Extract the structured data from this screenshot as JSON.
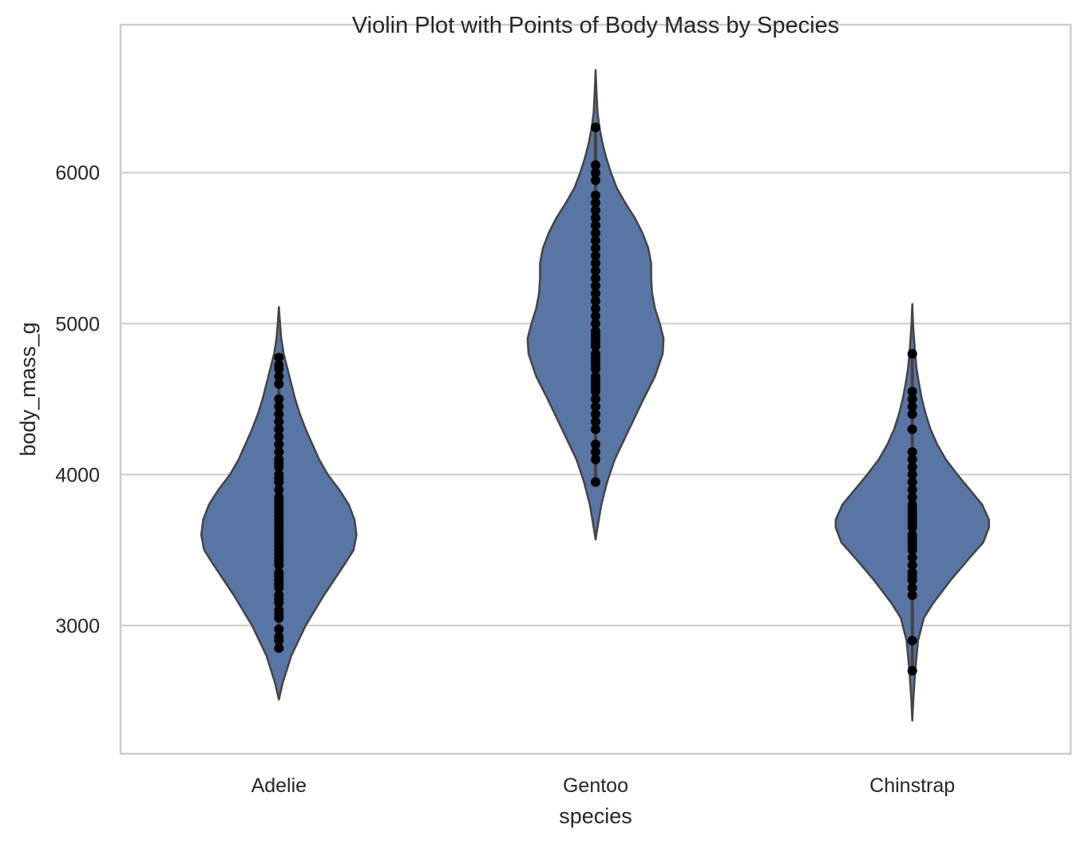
{
  "chart_data": {
    "type": "violin",
    "title": "Violin Plot with Points of Body Mass by Species",
    "xlabel": "species",
    "ylabel": "body_mass_g",
    "categories": [
      "Adelie",
      "Gentoo",
      "Chinstrap"
    ],
    "ylim": [
      2150,
      6980
    ],
    "yticks": [
      3000,
      4000,
      5000,
      6000
    ],
    "grid": true,
    "colors": {
      "violin_fill": "#5975a4",
      "violin_edge": "#444444",
      "points": "#000000",
      "grid": "#cccccc",
      "frame": "#cccccc"
    },
    "violins": [
      {
        "category": "Adelie",
        "range": [
          2510,
          5110
        ],
        "profile": [
          [
            2510,
            0.0
          ],
          [
            2620,
            0.04
          ],
          [
            2800,
            0.13
          ],
          [
            3000,
            0.28
          ],
          [
            3200,
            0.47
          ],
          [
            3400,
            0.68
          ],
          [
            3500,
            0.78
          ],
          [
            3600,
            0.81
          ],
          [
            3700,
            0.79
          ],
          [
            3800,
            0.73
          ],
          [
            3900,
            0.63
          ],
          [
            4000,
            0.51
          ],
          [
            4100,
            0.42
          ],
          [
            4200,
            0.35
          ],
          [
            4300,
            0.28
          ],
          [
            4400,
            0.22
          ],
          [
            4500,
            0.17
          ],
          [
            4600,
            0.13
          ],
          [
            4700,
            0.09
          ],
          [
            4800,
            0.05
          ],
          [
            4900,
            0.025
          ],
          [
            5000,
            0.012
          ],
          [
            5110,
            0.0
          ]
        ],
        "points": [
          2850,
          2900,
          2925,
          2975,
          3050,
          3075,
          3100,
          3150,
          3175,
          3200,
          3250,
          3275,
          3300,
          3325,
          3350,
          3400,
          3425,
          3450,
          3475,
          3500,
          3525,
          3550,
          3575,
          3600,
          3625,
          3650,
          3675,
          3700,
          3725,
          3750,
          3775,
          3800,
          3825,
          3850,
          3900,
          3950,
          3975,
          4000,
          4050,
          4075,
          4100,
          4150,
          4200,
          4250,
          4300,
          4350,
          4400,
          4450,
          4500,
          4600,
          4650,
          4700,
          4725,
          4775
        ]
      },
      {
        "category": "Gentoo",
        "range": [
          3570,
          6680
        ],
        "profile": [
          [
            3570,
            0.0
          ],
          [
            3650,
            0.02
          ],
          [
            3800,
            0.06
          ],
          [
            3950,
            0.12
          ],
          [
            4100,
            0.2
          ],
          [
            4300,
            0.35
          ],
          [
            4500,
            0.5
          ],
          [
            4650,
            0.62
          ],
          [
            4800,
            0.7
          ],
          [
            4900,
            0.71
          ],
          [
            5000,
            0.67
          ],
          [
            5100,
            0.62
          ],
          [
            5200,
            0.59
          ],
          [
            5300,
            0.58
          ],
          [
            5400,
            0.58
          ],
          [
            5500,
            0.55
          ],
          [
            5600,
            0.49
          ],
          [
            5700,
            0.41
          ],
          [
            5800,
            0.31
          ],
          [
            5900,
            0.22
          ],
          [
            6000,
            0.16
          ],
          [
            6100,
            0.11
          ],
          [
            6200,
            0.07
          ],
          [
            6300,
            0.04
          ],
          [
            6400,
            0.02
          ],
          [
            6550,
            0.008
          ],
          [
            6680,
            0.0
          ]
        ],
        "points": [
          3950,
          4100,
          4150,
          4200,
          4300,
          4350,
          4400,
          4450,
          4500,
          4550,
          4575,
          4600,
          4625,
          4650,
          4700,
          4725,
          4750,
          4775,
          4800,
          4850,
          4875,
          4900,
          4925,
          4950,
          5000,
          5050,
          5100,
          5150,
          5200,
          5250,
          5300,
          5350,
          5400,
          5450,
          5500,
          5550,
          5600,
          5650,
          5700,
          5750,
          5800,
          5850,
          5950,
          6000,
          6050,
          6300
        ]
      },
      {
        "category": "Chinstrap",
        "range": [
          2370,
          5130
        ],
        "profile": [
          [
            2370,
            0.0
          ],
          [
            2500,
            0.01
          ],
          [
            2700,
            0.03
          ],
          [
            2900,
            0.06
          ],
          [
            3050,
            0.12
          ],
          [
            3150,
            0.22
          ],
          [
            3300,
            0.4
          ],
          [
            3450,
            0.6
          ],
          [
            3550,
            0.74
          ],
          [
            3650,
            0.8
          ],
          [
            3700,
            0.8
          ],
          [
            3800,
            0.73
          ],
          [
            3900,
            0.6
          ],
          [
            4000,
            0.47
          ],
          [
            4100,
            0.35
          ],
          [
            4200,
            0.26
          ],
          [
            4300,
            0.19
          ],
          [
            4400,
            0.14
          ],
          [
            4500,
            0.1
          ],
          [
            4600,
            0.07
          ],
          [
            4700,
            0.045
          ],
          [
            4800,
            0.03
          ],
          [
            4900,
            0.018
          ],
          [
            5000,
            0.008
          ],
          [
            5130,
            0.0
          ]
        ],
        "points": [
          2700,
          2900,
          3200,
          3250,
          3300,
          3325,
          3350,
          3400,
          3450,
          3500,
          3525,
          3550,
          3575,
          3600,
          3650,
          3675,
          3700,
          3725,
          3750,
          3775,
          3800,
          3850,
          3900,
          3950,
          4000,
          4050,
          4100,
          4150,
          4300,
          4400,
          4450,
          4500,
          4550,
          4800
        ]
      }
    ]
  }
}
